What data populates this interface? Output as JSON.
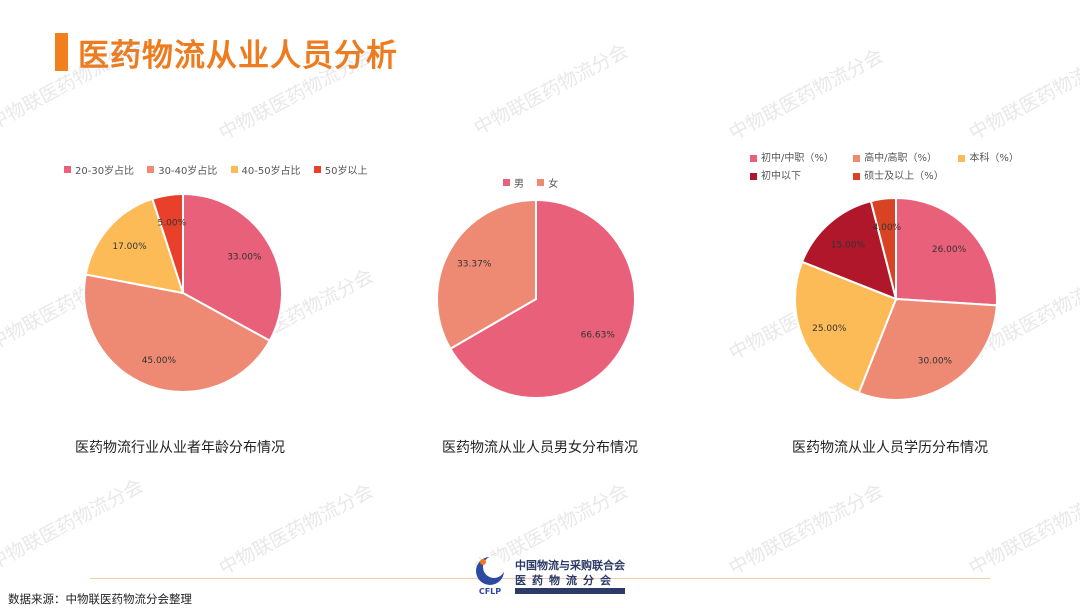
{
  "page": {
    "title": "医药物流从业人员分析",
    "source": "数据来源：中物联医药物流分会整理"
  },
  "watermark": "中物联医药物流分会",
  "logo": {
    "org_line1": "中国物流与采购联合会",
    "org_line2": "医药物流分会",
    "acronym": "CFLP"
  },
  "colors": {
    "accent": "#ee7b1d"
  },
  "chart_data": [
    {
      "type": "pie",
      "title": "医药物流行业从业者年龄分布情况",
      "categories": [
        "20-30岁占比",
        "30-40岁占比",
        "40-50岁占比",
        "50岁以上"
      ],
      "values": [
        33,
        45,
        17,
        5
      ],
      "labels": [
        "33.00%",
        "45.00%",
        "17.00%",
        "5.00%"
      ],
      "colors": [
        "#e9607a",
        "#ee8a73",
        "#fdbb58",
        "#e8402a"
      ],
      "legend": "top"
    },
    {
      "type": "pie",
      "title": "医药物流从业人员男女分布情况",
      "categories": [
        "男",
        "女"
      ],
      "values": [
        66.63,
        33.37
      ],
      "labels": [
        "66.63%",
        "33.37%"
      ],
      "colors": [
        "#e9607a",
        "#ee8a73"
      ],
      "legend": "top"
    },
    {
      "type": "pie",
      "title": "医药物流从业人员学历分布情况",
      "categories": [
        "初中/中职（%）",
        "高中/高职（%）",
        "本科（%）",
        "初中以下",
        "硕士及以上（%）"
      ],
      "values": [
        26,
        30,
        25,
        15,
        4
      ],
      "labels": [
        "26.00%",
        "30.00%",
        "25.00%",
        "15.00%",
        "4.00%"
      ],
      "colors": [
        "#e9607a",
        "#ee8a73",
        "#fdbb58",
        "#b0172b",
        "#d84423"
      ],
      "legend": "top"
    }
  ]
}
